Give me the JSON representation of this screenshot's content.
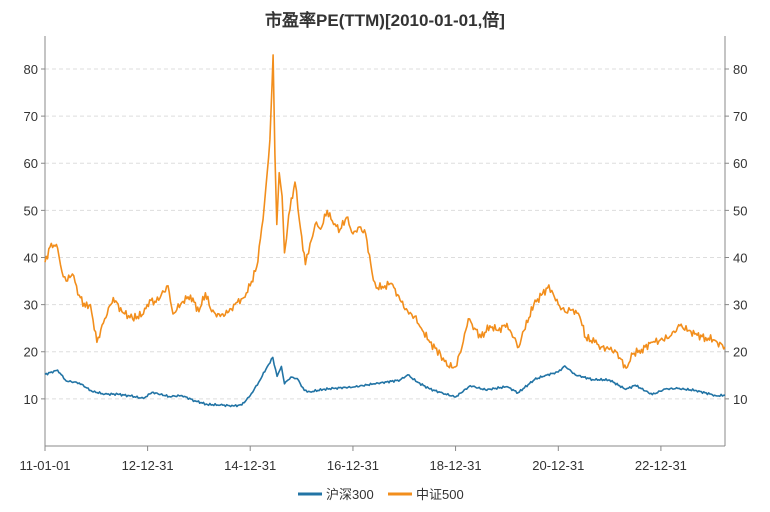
{
  "title": "市盈率PE(TTM)[2010-01-01,倍]",
  "chart_data": {
    "type": "line",
    "title": "市盈率PE(TTM)[2010-01-01,倍]",
    "xlabel": "",
    "ylabel": "",
    "ylim": [
      0,
      87
    ],
    "y_ticks": [
      10,
      20,
      30,
      40,
      50,
      60,
      70,
      80
    ],
    "x_ticks": [
      "11-01-01",
      "12-12-31",
      "14-12-31",
      "16-12-31",
      "18-12-31",
      "20-12-31",
      "22-12-31"
    ],
    "x_range": [
      "2011-01-01",
      "2024-03-31"
    ],
    "grid": "horizontal dashed",
    "dual_y_axis": true,
    "legend": "bottom-center",
    "series": [
      {
        "name": "沪深300",
        "color": "#2274a5",
        "points": [
          [
            "2011-01-01",
            15.2
          ],
          [
            "2011-04-01",
            16.1
          ],
          [
            "2011-06-01",
            13.8
          ],
          [
            "2011-09-01",
            13.4
          ],
          [
            "2011-12-01",
            11.6
          ],
          [
            "2012-03-01",
            11.0
          ],
          [
            "2012-06-01",
            11.0
          ],
          [
            "2012-09-01",
            10.6
          ],
          [
            "2012-12-01",
            10.1
          ],
          [
            "2013-02-01",
            11.4
          ],
          [
            "2013-06-01",
            10.5
          ],
          [
            "2013-09-01",
            10.7
          ],
          [
            "2013-12-01",
            9.6
          ],
          [
            "2014-03-01",
            8.8
          ],
          [
            "2014-06-01",
            8.7
          ],
          [
            "2014-09-01",
            8.5
          ],
          [
            "2014-11-01",
            8.7
          ],
          [
            "2014-12-31",
            10.7
          ],
          [
            "2015-03-01",
            13.5
          ],
          [
            "2015-05-01",
            16.8
          ],
          [
            "2015-06-10",
            18.8
          ],
          [
            "2015-07-10",
            14.8
          ],
          [
            "2015-08-10",
            16.9
          ],
          [
            "2015-09-01",
            13.2
          ],
          [
            "2015-10-15",
            14.6
          ],
          [
            "2015-12-01",
            14.3
          ],
          [
            "2016-01-20",
            11.8
          ],
          [
            "2016-03-01",
            11.5
          ],
          [
            "2016-06-01",
            12.0
          ],
          [
            "2016-09-01",
            12.3
          ],
          [
            "2016-12-31",
            12.5
          ],
          [
            "2017-06-01",
            13.2
          ],
          [
            "2017-12-01",
            14.0
          ],
          [
            "2018-01-25",
            15.1
          ],
          [
            "2018-04-01",
            13.6
          ],
          [
            "2018-07-01",
            12.1
          ],
          [
            "2018-10-01",
            11.2
          ],
          [
            "2018-12-31",
            10.4
          ],
          [
            "2019-04-15",
            12.8
          ],
          [
            "2019-08-01",
            11.9
          ],
          [
            "2019-12-31",
            12.6
          ],
          [
            "2020-03-20",
            11.3
          ],
          [
            "2020-07-15",
            14.1
          ],
          [
            "2020-10-01",
            15.0
          ],
          [
            "2020-12-31",
            15.7
          ],
          [
            "2021-02-15",
            17.0
          ],
          [
            "2021-05-01",
            15.1
          ],
          [
            "2021-09-01",
            14.1
          ],
          [
            "2021-12-31",
            14.0
          ],
          [
            "2022-04-25",
            12.0
          ],
          [
            "2022-07-01",
            12.9
          ],
          [
            "2022-10-31",
            10.9
          ],
          [
            "2023-01-31",
            12.1
          ],
          [
            "2023-05-01",
            12.2
          ],
          [
            "2023-09-01",
            11.8
          ],
          [
            "2023-12-31",
            10.9
          ],
          [
            "2024-02-05",
            10.6
          ],
          [
            "2024-03-31",
            10.8
          ]
        ]
      },
      {
        "name": "中证500",
        "color": "#f28e1c",
        "points": [
          [
            "2011-01-01",
            39.0
          ],
          [
            "2011-02-15",
            43.0
          ],
          [
            "2011-04-01",
            42.0
          ],
          [
            "2011-05-01",
            37.0
          ],
          [
            "2011-06-01",
            35.0
          ],
          [
            "2011-07-15",
            36.5
          ],
          [
            "2011-09-01",
            32.0
          ],
          [
            "2011-10-15",
            29.5
          ],
          [
            "2011-11-20",
            30.0
          ],
          [
            "2012-01-05",
            22.0
          ],
          [
            "2012-03-01",
            27.0
          ],
          [
            "2012-05-01",
            31.5
          ],
          [
            "2012-07-01",
            28.5
          ],
          [
            "2012-09-15",
            27.0
          ],
          [
            "2012-12-01",
            28.0
          ],
          [
            "2013-01-15",
            31.0
          ],
          [
            "2013-03-01",
            30.5
          ],
          [
            "2013-05-25",
            34.0
          ],
          [
            "2013-06-30",
            28.0
          ],
          [
            "2013-09-01",
            30.5
          ],
          [
            "2013-11-01",
            32.0
          ],
          [
            "2013-12-31",
            28.5
          ],
          [
            "2014-02-15",
            32.5
          ],
          [
            "2014-04-01",
            28.5
          ],
          [
            "2014-06-01",
            27.5
          ],
          [
            "2014-08-01",
            28.5
          ],
          [
            "2014-09-30",
            30.5
          ],
          [
            "2014-11-15",
            31.5
          ],
          [
            "2014-12-31",
            34.0
          ],
          [
            "2015-02-15",
            38.0
          ],
          [
            "2015-04-01",
            48.0
          ],
          [
            "2015-05-01",
            58.0
          ],
          [
            "2015-05-20",
            65.0
          ],
          [
            "2015-06-05",
            77.0
          ],
          [
            "2015-06-12",
            83.0
          ],
          [
            "2015-06-25",
            62.0
          ],
          [
            "2015-07-08",
            47.0
          ],
          [
            "2015-07-25",
            58.0
          ],
          [
            "2015-08-15",
            53.0
          ],
          [
            "2015-09-01",
            41.0
          ],
          [
            "2015-09-15",
            44.0
          ],
          [
            "2015-10-01",
            49.0
          ],
          [
            "2015-11-15",
            56.0
          ],
          [
            "2015-12-15",
            48.0
          ],
          [
            "2016-01-28",
            38.5
          ],
          [
            "2016-03-01",
            43.0
          ],
          [
            "2016-04-15",
            47.5
          ],
          [
            "2016-05-15",
            46.0
          ],
          [
            "2016-07-01",
            50.0
          ],
          [
            "2016-08-15",
            47.0
          ],
          [
            "2016-10-01",
            46.0
          ],
          [
            "2016-11-15",
            48.5
          ],
          [
            "2016-12-31",
            45.0
          ],
          [
            "2017-02-15",
            46.5
          ],
          [
            "2017-04-01",
            45.0
          ],
          [
            "2017-05-15",
            37.0
          ],
          [
            "2017-06-15",
            33.5
          ],
          [
            "2017-08-15",
            34.0
          ],
          [
            "2017-10-01",
            34.5
          ],
          [
            "2017-12-01",
            31.0
          ],
          [
            "2018-02-01",
            28.0
          ],
          [
            "2018-03-15",
            27.5
          ],
          [
            "2018-05-01",
            25.0
          ],
          [
            "2018-07-01",
            22.0
          ],
          [
            "2018-09-15",
            19.5
          ],
          [
            "2018-11-01",
            17.0
          ],
          [
            "2018-12-31",
            16.8
          ],
          [
            "2019-02-15",
            21.0
          ],
          [
            "2019-04-01",
            27.0
          ],
          [
            "2019-05-15",
            25.0
          ],
          [
            "2019-07-01",
            23.0
          ],
          [
            "2019-09-01",
            25.5
          ],
          [
            "2019-11-01",
            24.5
          ],
          [
            "2019-12-31",
            26.0
          ],
          [
            "2020-02-01",
            24.0
          ],
          [
            "2020-03-25",
            21.0
          ],
          [
            "2020-05-01",
            24.5
          ],
          [
            "2020-07-10",
            30.0
          ],
          [
            "2020-09-01",
            32.0
          ],
          [
            "2020-10-15",
            33.5
          ],
          [
            "2020-11-15",
            33.0
          ],
          [
            "2020-12-31",
            30.0
          ],
          [
            "2021-02-15",
            28.5
          ],
          [
            "2021-04-15",
            29.0
          ],
          [
            "2021-06-01",
            27.5
          ],
          [
            "2021-07-15",
            23.0
          ],
          [
            "2021-09-15",
            22.0
          ],
          [
            "2021-11-01",
            21.0
          ],
          [
            "2021-12-31",
            20.5
          ],
          [
            "2022-02-15",
            20.0
          ],
          [
            "2022-04-27",
            16.5
          ],
          [
            "2022-06-15",
            19.5
          ],
          [
            "2022-08-15",
            20.5
          ],
          [
            "2022-10-31",
            22.0
          ],
          [
            "2023-01-15",
            22.5
          ],
          [
            "2023-03-15",
            23.5
          ],
          [
            "2023-05-15",
            25.5
          ],
          [
            "2023-07-15",
            24.5
          ],
          [
            "2023-09-15",
            23.5
          ],
          [
            "2023-11-15",
            23.0
          ],
          [
            "2024-01-15",
            22.5
          ],
          [
            "2024-02-05",
            22.0
          ],
          [
            "2024-03-31",
            21.0
          ]
        ]
      }
    ]
  }
}
